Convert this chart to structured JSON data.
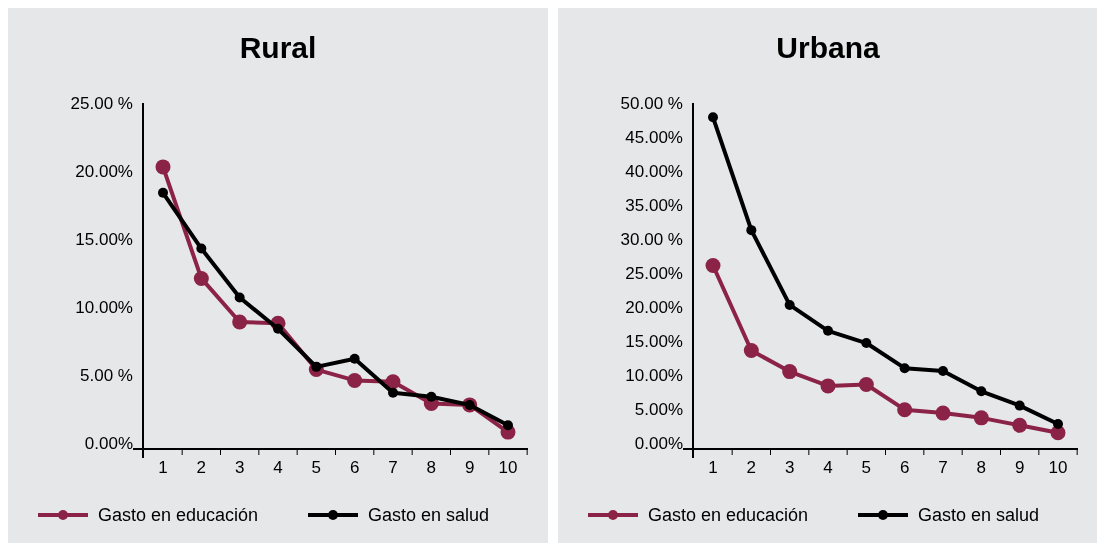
{
  "chart_data": [
    {
      "type": "line",
      "title": "Rural",
      "categories": [
        "1",
        "2",
        "3",
        "4",
        "5",
        "6",
        "7",
        "8",
        "9",
        "10"
      ],
      "ylim": [
        0,
        25
      ],
      "yticks": [
        {
          "value": 0,
          "label": "0.00%"
        },
        {
          "value": 5,
          "label": "5.00 %"
        },
        {
          "value": 10,
          "label": "10.00%"
        },
        {
          "value": 15,
          "label": "15.00%"
        },
        {
          "value": 20,
          "label": "20.00%"
        },
        {
          "value": 25,
          "label": "25.00 %"
        }
      ],
      "marker": "circle",
      "legend": "bottom",
      "grid": false,
      "series": [
        {
          "name": "Gasto en educación",
          "color": "#8b2346",
          "values": [
            20.3,
            12.1,
            8.9,
            8.8,
            5.4,
            4.6,
            4.5,
            2.9,
            2.8,
            0.8
          ]
        },
        {
          "name": "Gasto en salud",
          "color": "#000000",
          "values": [
            18.4,
            14.3,
            10.7,
            8.4,
            5.6,
            6.2,
            3.7,
            3.4,
            2.8,
            1.3
          ]
        }
      ]
    },
    {
      "type": "line",
      "title": "Urbana",
      "categories": [
        "1",
        "2",
        "3",
        "4",
        "5",
        "6",
        "7",
        "8",
        "9",
        "10"
      ],
      "ylim": [
        0,
        50
      ],
      "yticks": [
        {
          "value": 0,
          "label": "0.00%"
        },
        {
          "value": 5,
          "label": "5.00%"
        },
        {
          "value": 10,
          "label": "10.00%"
        },
        {
          "value": 15,
          "label": "15.00%"
        },
        {
          "value": 20,
          "label": "20.00%"
        },
        {
          "value": 25,
          "label": "25.00%"
        },
        {
          "value": 30,
          "label": "30.00 %"
        },
        {
          "value": 35,
          "label": "35.00%"
        },
        {
          "value": 40,
          "label": "40.00%"
        },
        {
          "value": 45,
          "label": "45.00%"
        },
        {
          "value": 50,
          "label": "50.00 %"
        }
      ],
      "marker": "circle",
      "legend": "bottom",
      "grid": false,
      "series": [
        {
          "name": "Gasto en educación",
          "color": "#8b2346",
          "values": [
            26.1,
            13.6,
            10.5,
            8.4,
            8.6,
            4.9,
            4.4,
            3.7,
            2.6,
            1.5
          ]
        },
        {
          "name": "Gasto en salud",
          "color": "#000000",
          "values": [
            47.9,
            31.3,
            20.3,
            16.5,
            14.7,
            11.0,
            10.6,
            7.6,
            5.5,
            2.8
          ]
        }
      ]
    }
  ]
}
